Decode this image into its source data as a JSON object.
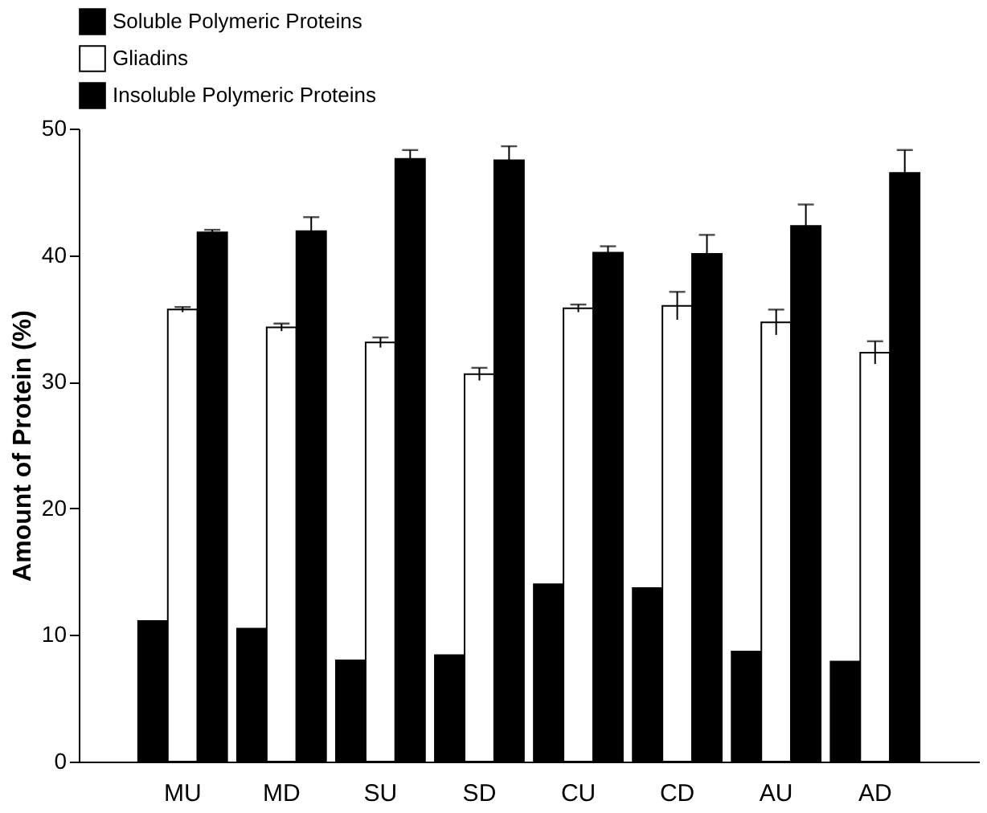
{
  "chart_data": {
    "type": "bar",
    "ylabel": "Amount of Protein (%)",
    "categories": [
      "MU",
      "MD",
      "SU",
      "SD",
      "CU",
      "CD",
      "AU",
      "AD"
    ],
    "series": [
      {
        "name": "Soluble Polymeric Proteins",
        "color": "#000000",
        "values": [
          11.1,
          10.5,
          8.0,
          8.4,
          14.0,
          13.7,
          8.7,
          7.9
        ]
      },
      {
        "name": "Gliadins",
        "color": "#ffffff",
        "values": [
          35.7,
          34.3,
          33.1,
          30.6,
          35.8,
          36.0,
          34.7,
          32.3
        ],
        "errors": [
          0.2,
          0.3,
          0.4,
          0.5,
          0.3,
          1.1,
          1.0,
          0.9
        ]
      },
      {
        "name": "Insoluble Polymeric Proteins",
        "color": "#000000",
        "values": [
          41.8,
          41.9,
          47.6,
          47.5,
          40.2,
          40.1,
          42.3,
          46.5
        ],
        "errors": [
          0.2,
          1.1,
          0.7,
          1.1,
          0.5,
          1.5,
          1.7,
          1.8
        ]
      }
    ],
    "ylim": [
      0,
      50
    ],
    "yticks": [
      0,
      10,
      20,
      30,
      40,
      50
    ],
    "grid": false,
    "legend": "top"
  }
}
